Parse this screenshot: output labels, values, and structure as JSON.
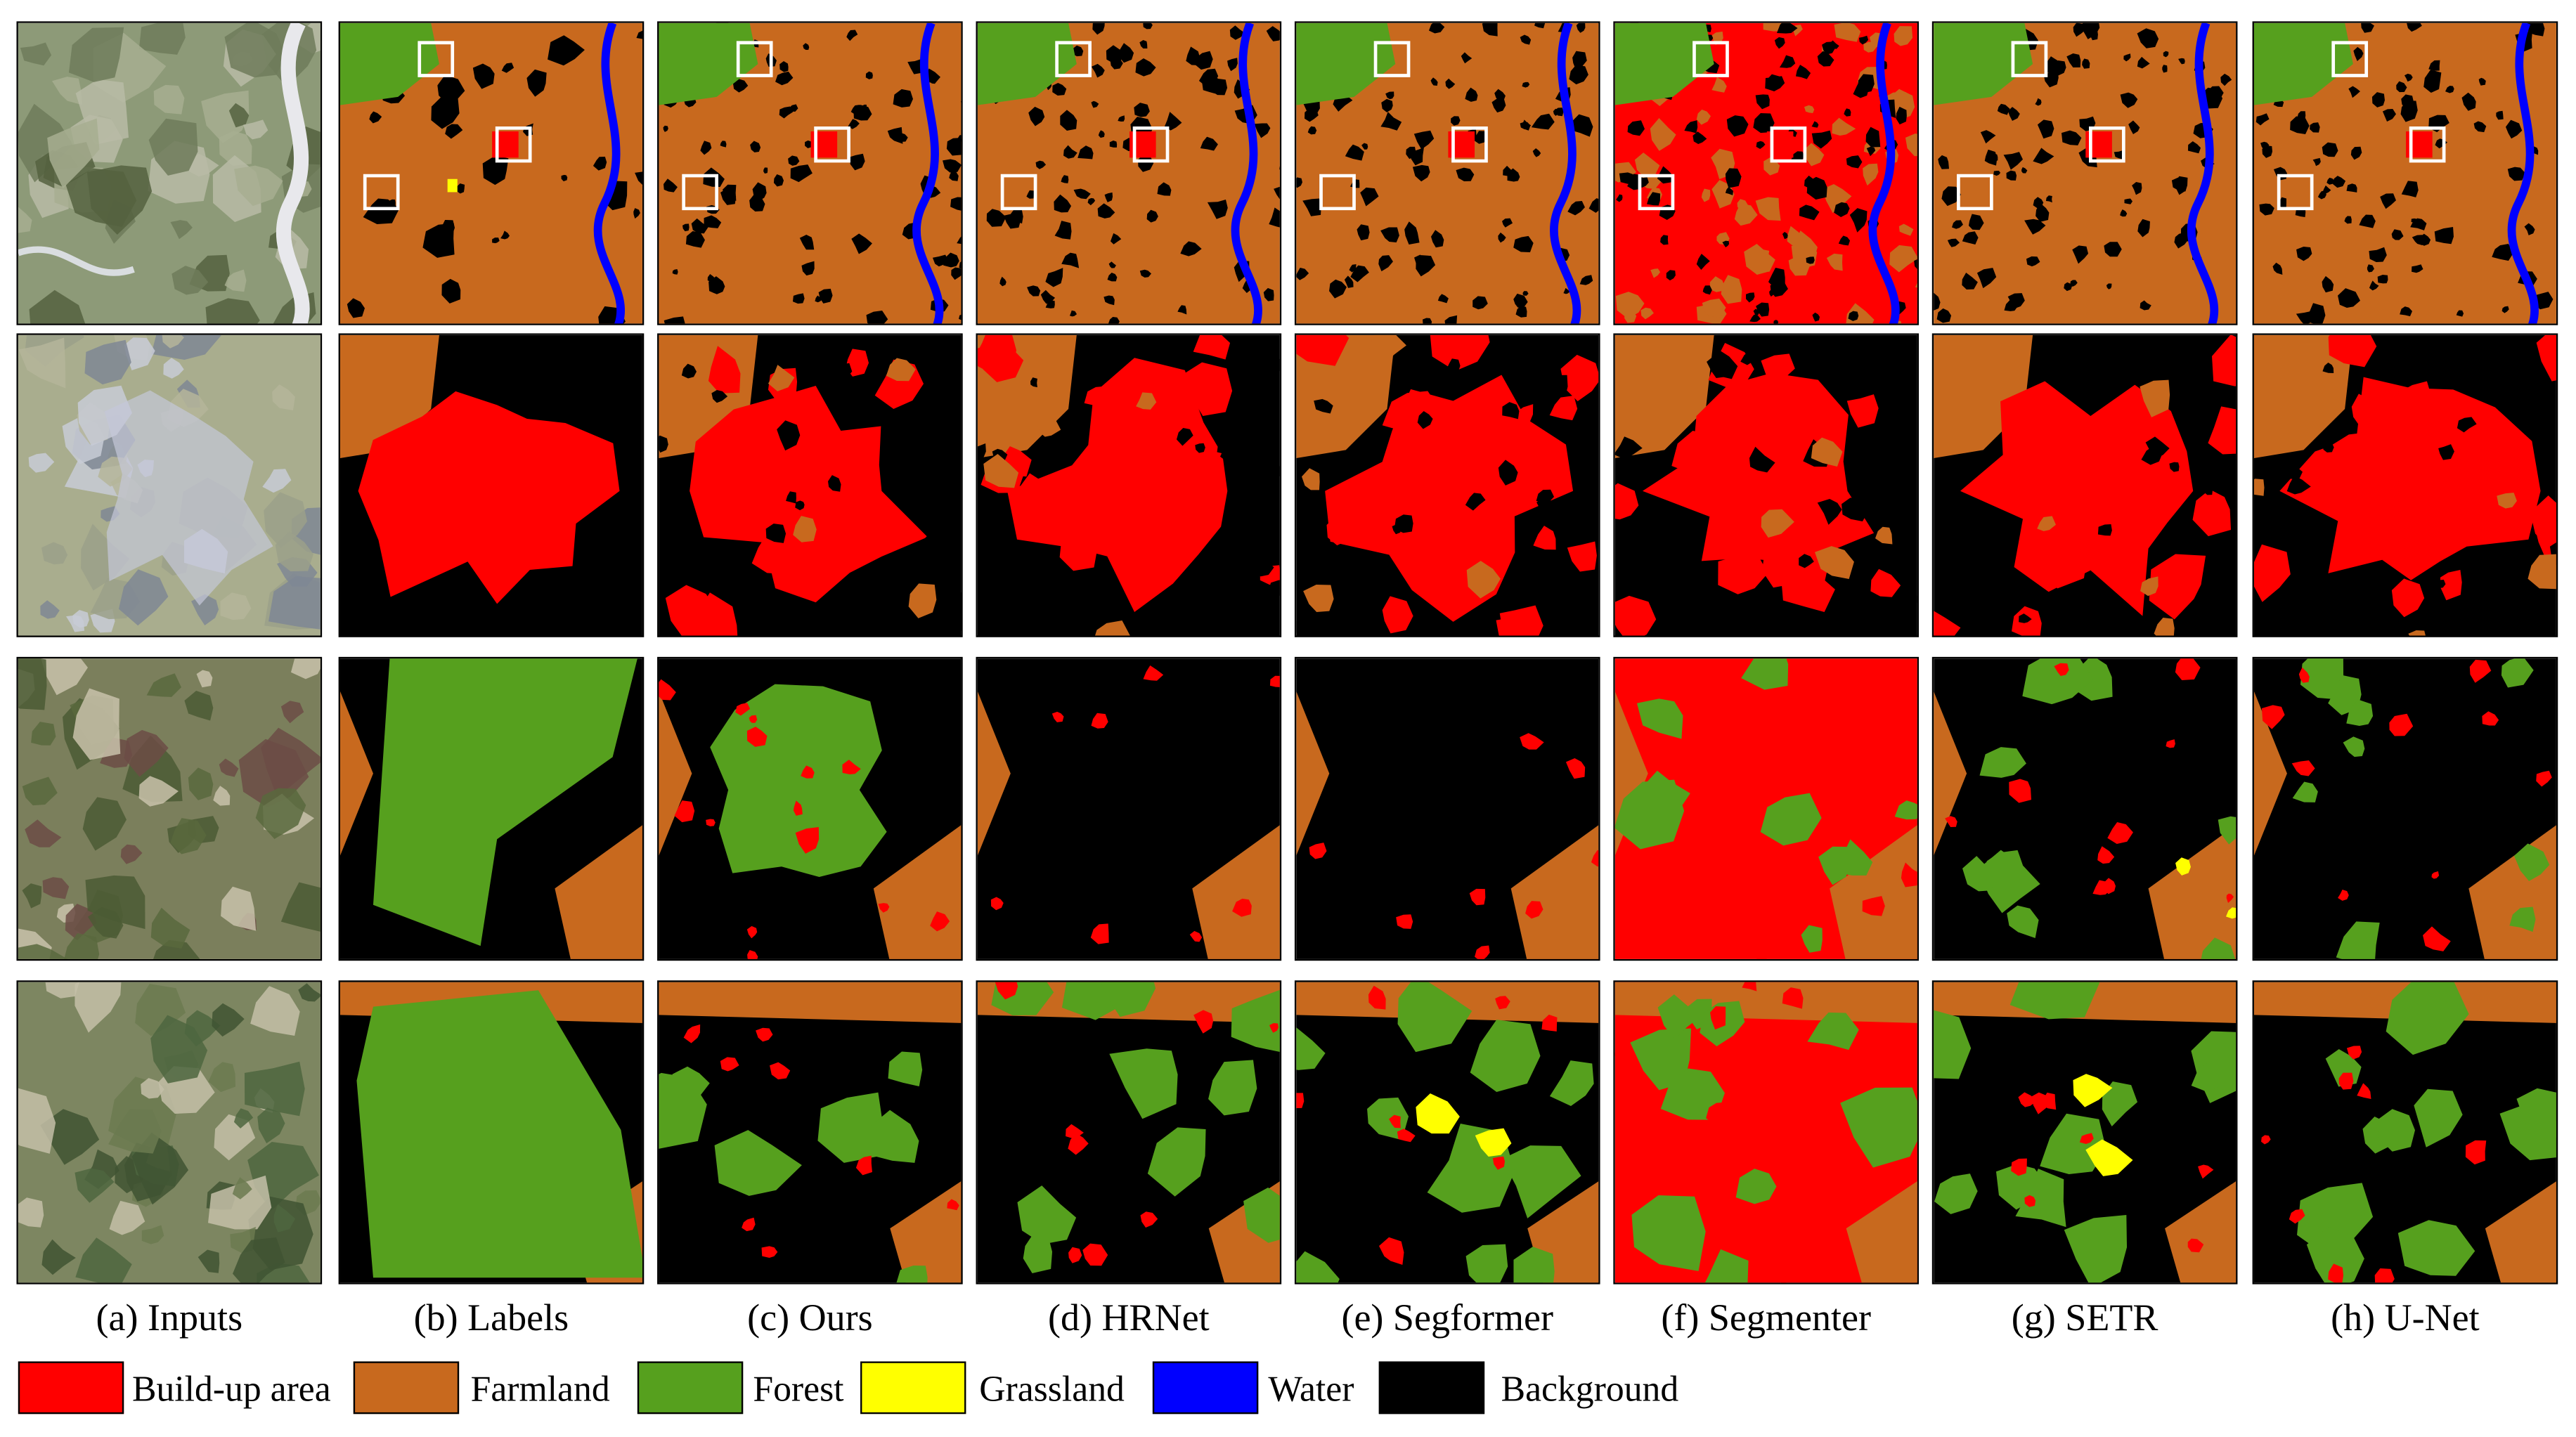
{
  "figure": {
    "columns": [
      {
        "id": "inputs",
        "caption": "(a) Inputs"
      },
      {
        "id": "labels",
        "caption": "(b) Labels"
      },
      {
        "id": "ours",
        "caption": "(c) Ours"
      },
      {
        "id": "hrnet",
        "caption": "(d) HRNet"
      },
      {
        "id": "segformer",
        "caption": "(e) Segformer"
      },
      {
        "id": "segmenter",
        "caption": "(f) Segmenter"
      },
      {
        "id": "setr",
        "caption": "(g) SETR"
      },
      {
        "id": "unet",
        "caption": "(h) U-Net"
      }
    ],
    "row_count": 4
  },
  "legend": [
    {
      "label": "Build-up area",
      "color": "#ff0000"
    },
    {
      "label": "Farmland",
      "color": "#c8691e"
    },
    {
      "label": "Forest",
      "color": "#56a01e"
    },
    {
      "label": "Grassland",
      "color": "#ffff00"
    },
    {
      "label": "Water",
      "color": "#0000ff"
    },
    {
      "label": "Background",
      "color": "#000000"
    }
  ]
}
